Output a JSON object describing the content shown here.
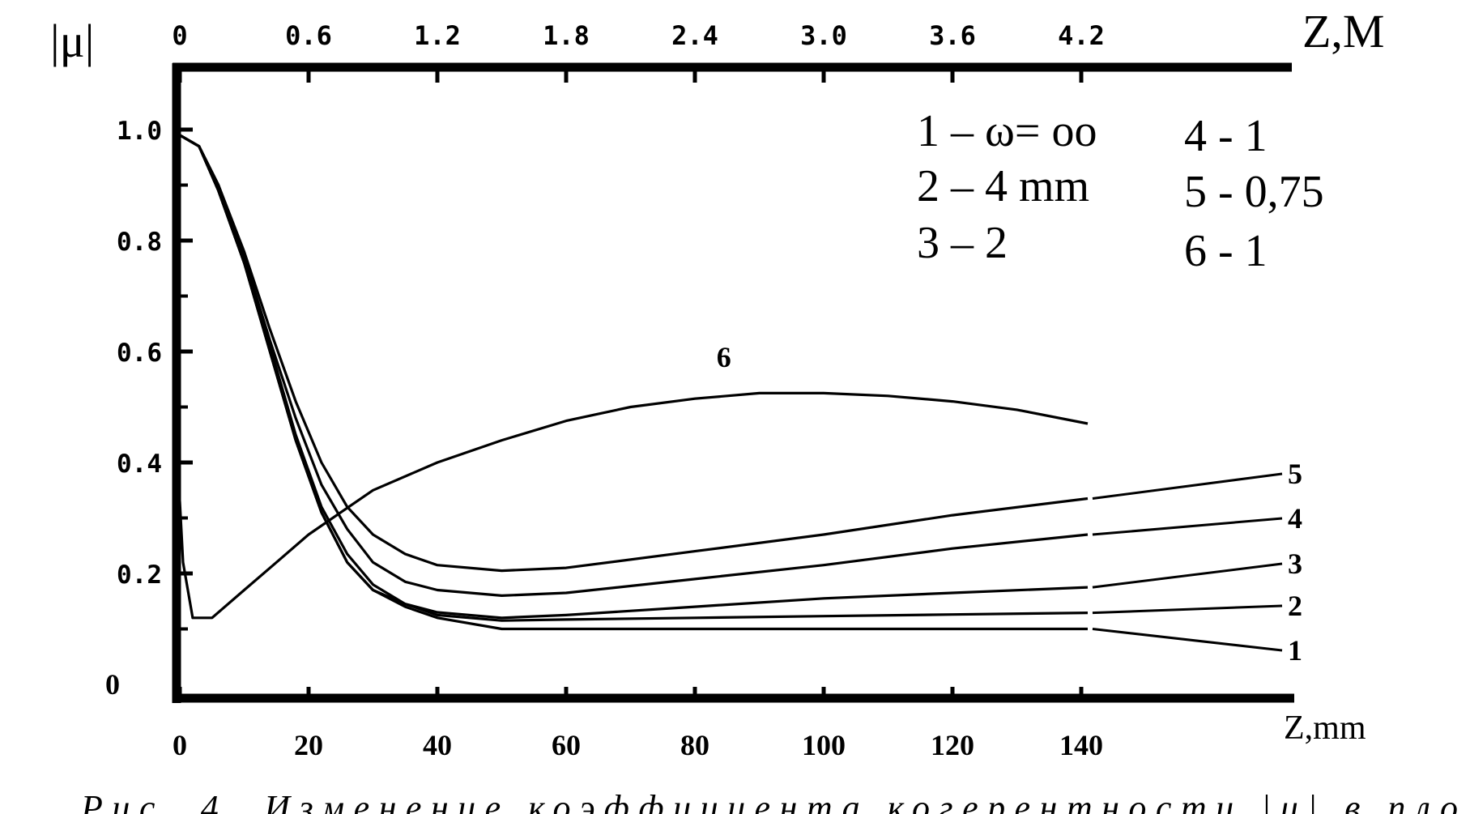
{
  "chart_data": {
    "type": "line",
    "y_label": "|μ|",
    "x_bottom_label": "Z,mm",
    "x_top_label": "Z,M",
    "xlim": [
      0,
      150
    ],
    "ylim": [
      0,
      1.0
    ],
    "y_ticks": [
      "1.0",
      "0.8",
      "0.6",
      "0.4",
      "0.2",
      "0"
    ],
    "y_tick_values": [
      1.0,
      0.8,
      0.6,
      0.4,
      0.2,
      0
    ],
    "x_bottom_ticks": [
      "0",
      "20",
      "40",
      "60",
      "80",
      "100",
      "120",
      "140"
    ],
    "x_bottom_values": [
      0,
      20,
      40,
      60,
      80,
      100,
      120,
      140
    ],
    "x_top_ticks": [
      "0",
      "0.6",
      "1.2",
      "1.8",
      "2.4",
      "3.0",
      "3.6",
      "4.2"
    ],
    "grid": false,
    "legend": [
      {
        "text": "1 – ω= oo"
      },
      {
        "text": "2 – 4 mm"
      },
      {
        "text": "3 – 2"
      },
      {
        "text": "4 - 1"
      },
      {
        "text": "5 - 0,75"
      },
      {
        "text": "6 - 1"
      }
    ],
    "series": [
      {
        "label": "1",
        "x": [
          0,
          3,
          6,
          10,
          14,
          18,
          22,
          26,
          30,
          35,
          40,
          50,
          60,
          80,
          100,
          120,
          141
        ],
        "y": [
          0.99,
          0.97,
          0.89,
          0.76,
          0.6,
          0.44,
          0.31,
          0.22,
          0.17,
          0.14,
          0.12,
          0.1,
          0.1,
          0.1,
          0.1,
          0.1,
          0.1
        ]
      },
      {
        "label": "2",
        "x": [
          0,
          3,
          6,
          10,
          14,
          18,
          22,
          26,
          30,
          35,
          40,
          50,
          60,
          80,
          100,
          120,
          141
        ],
        "y": [
          0.99,
          0.97,
          0.89,
          0.76,
          0.6,
          0.44,
          0.31,
          0.22,
          0.17,
          0.145,
          0.125,
          0.115,
          0.117,
          0.12,
          0.123,
          0.126,
          0.129
        ]
      },
      {
        "label": "3",
        "x": [
          0,
          3,
          6,
          10,
          14,
          18,
          22,
          26,
          30,
          35,
          40,
          50,
          60,
          80,
          100,
          120,
          141
        ],
        "y": [
          0.99,
          0.97,
          0.89,
          0.76,
          0.61,
          0.45,
          0.32,
          0.235,
          0.18,
          0.145,
          0.13,
          0.12,
          0.125,
          0.14,
          0.155,
          0.165,
          0.175
        ]
      },
      {
        "label": "4",
        "x": [
          0,
          3,
          6,
          10,
          14,
          18,
          22,
          26,
          30,
          35,
          40,
          50,
          60,
          80,
          100,
          120,
          141
        ],
        "y": [
          0.99,
          0.97,
          0.9,
          0.77,
          0.62,
          0.48,
          0.36,
          0.28,
          0.22,
          0.185,
          0.17,
          0.16,
          0.165,
          0.19,
          0.215,
          0.245,
          0.27
        ]
      },
      {
        "label": "5",
        "x": [
          0,
          3,
          6,
          10,
          14,
          18,
          22,
          26,
          30,
          35,
          40,
          50,
          60,
          80,
          100,
          120,
          141
        ],
        "y": [
          0.99,
          0.97,
          0.9,
          0.78,
          0.64,
          0.51,
          0.4,
          0.32,
          0.27,
          0.235,
          0.215,
          0.205,
          0.21,
          0.24,
          0.27,
          0.305,
          0.335
        ]
      },
      {
        "label": "6",
        "x": [
          0,
          0.5,
          2,
          5,
          10,
          15,
          20,
          25,
          30,
          40,
          50,
          60,
          70,
          80,
          90,
          100,
          110,
          120,
          130,
          141
        ],
        "y": [
          0.33,
          0.22,
          0.12,
          0.12,
          0.17,
          0.22,
          0.27,
          0.31,
          0.35,
          0.4,
          0.44,
          0.475,
          0.5,
          0.515,
          0.525,
          0.525,
          0.52,
          0.51,
          0.495,
          0.47
        ]
      }
    ],
    "curve_labels": [
      "1",
      "2",
      "3",
      "4",
      "5",
      "6"
    ]
  },
  "caption": {
    "visible_fragment": "Рис. 4.   Изменение   коэффициента   когерентности   |μ|   в   пло"
  }
}
